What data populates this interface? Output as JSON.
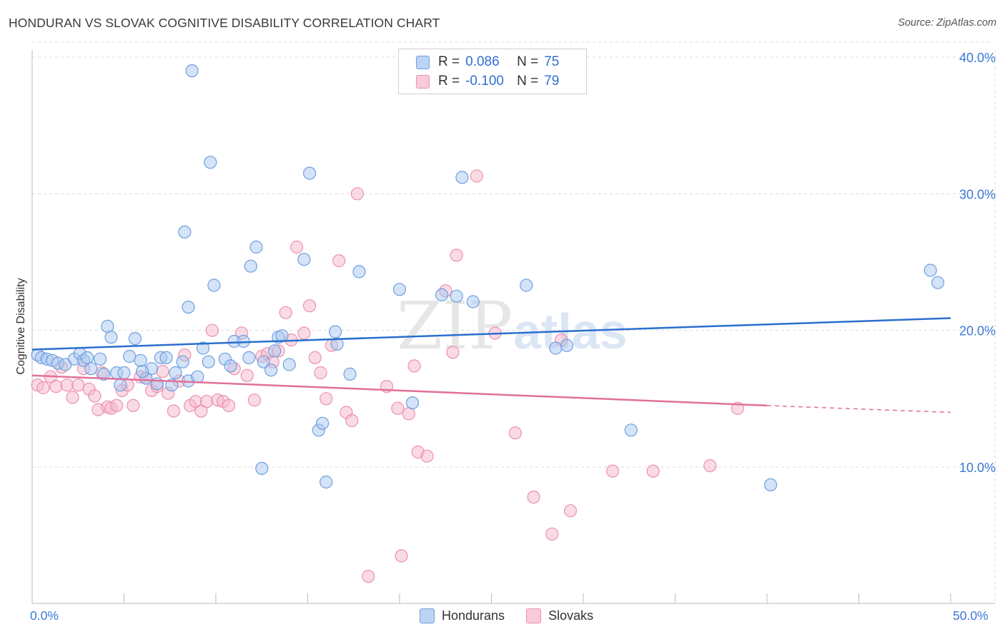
{
  "header": {
    "title": "HONDURAN VS SLOVAK COGNITIVE DISABILITY CORRELATION CHART",
    "source": "Source: ZipAtlas.com"
  },
  "legend_top": {
    "rows": [
      {
        "r_label": "R =",
        "r_value": "0.086",
        "n_label": "N =",
        "n_value": "75"
      },
      {
        "r_label": "R =",
        "r_value": "-0.100",
        "n_label": "N =",
        "n_value": "79"
      }
    ]
  },
  "legend_bottom": [
    "Hondurans",
    "Slovaks"
  ],
  "axes": {
    "ylabel": "Cognitive Disability",
    "x_min_label": "0.0%",
    "x_max_label": "50.0%",
    "y_tick_labels": [
      "10.0%",
      "20.0%",
      "30.0%",
      "40.0%"
    ]
  },
  "watermark": {
    "zip": "ZIP",
    "atlas": "atlas"
  },
  "colors": {
    "blue": "#2a6fce",
    "blue_fill": "#a9c8f0",
    "blue_stroke": "#6f9fe0",
    "pink": "#e0709a",
    "pink_fill": "#f6b8cb",
    "pink_stroke": "#ec90ae",
    "tick_text": "#3a78d8"
  },
  "chart_data": {
    "type": "scatter",
    "xlim": [
      0,
      50
    ],
    "ylim": [
      0,
      41
    ],
    "x_unit": "%",
    "y_unit": "%",
    "y_ticks": [
      10,
      20,
      30,
      40
    ],
    "grid": "horizontal dashed",
    "series": [
      {
        "name": "Hondurans",
        "color": "#2a6fce",
        "points": [
          [
            0.3,
            18.2
          ],
          [
            0.5,
            18.0
          ],
          [
            0.8,
            17.9
          ],
          [
            1.1,
            17.8
          ],
          [
            1.4,
            17.6
          ],
          [
            1.8,
            17.5
          ],
          [
            2.3,
            17.9
          ],
          [
            2.6,
            18.3
          ],
          [
            2.8,
            17.8
          ],
          [
            3.2,
            17.2
          ],
          [
            3.7,
            17.9
          ],
          [
            3.9,
            16.8
          ],
          [
            4.1,
            20.3
          ],
          [
            4.3,
            19.5
          ],
          [
            4.6,
            16.9
          ],
          [
            4.8,
            16.0
          ],
          [
            5.0,
            16.9
          ],
          [
            5.3,
            18.1
          ],
          [
            5.6,
            19.4
          ],
          [
            5.9,
            17.8
          ],
          [
            6.2,
            16.5
          ],
          [
            6.5,
            17.2
          ],
          [
            6.8,
            16.1
          ],
          [
            7.0,
            18.0
          ],
          [
            7.3,
            18.0
          ],
          [
            7.6,
            16.0
          ],
          [
            7.8,
            16.9
          ],
          [
            8.2,
            17.7
          ],
          [
            8.5,
            16.3
          ],
          [
            8.3,
            27.2
          ],
          [
            8.5,
            21.7
          ],
          [
            8.7,
            39.0
          ],
          [
            9.0,
            16.6
          ],
          [
            9.3,
            18.7
          ],
          [
            9.6,
            17.7
          ],
          [
            9.7,
            32.3
          ],
          [
            9.9,
            23.3
          ],
          [
            10.5,
            17.9
          ],
          [
            10.8,
            17.4
          ],
          [
            11.0,
            19.2
          ],
          [
            11.5,
            19.2
          ],
          [
            11.8,
            18.0
          ],
          [
            11.9,
            24.7
          ],
          [
            12.2,
            26.1
          ],
          [
            12.6,
            17.7
          ],
          [
            13.0,
            17.1
          ],
          [
            13.2,
            18.5
          ],
          [
            13.4,
            19.5
          ],
          [
            13.6,
            19.6
          ],
          [
            14.0,
            17.5
          ],
          [
            14.8,
            25.2
          ],
          [
            15.1,
            31.5
          ],
          [
            15.6,
            12.7
          ],
          [
            15.8,
            13.2
          ],
          [
            16.0,
            8.9
          ],
          [
            16.5,
            19.9
          ],
          [
            16.6,
            19.0
          ],
          [
            17.3,
            16.8
          ],
          [
            17.8,
            24.3
          ],
          [
            12.5,
            9.9
          ],
          [
            20.0,
            23.0
          ],
          [
            20.7,
            14.7
          ],
          [
            22.3,
            22.6
          ],
          [
            23.1,
            22.5
          ],
          [
            23.4,
            31.2
          ],
          [
            24.0,
            22.1
          ],
          [
            26.9,
            23.3
          ],
          [
            28.5,
            18.7
          ],
          [
            29.1,
            18.9
          ],
          [
            32.6,
            12.7
          ],
          [
            40.2,
            8.7
          ],
          [
            48.9,
            24.4
          ],
          [
            49.3,
            23.5
          ],
          [
            3.0,
            18.0
          ],
          [
            6.0,
            17.0
          ]
        ]
      },
      {
        "name": "Slovaks",
        "color": "#e0709a",
        "points": [
          [
            0.3,
            16.0
          ],
          [
            0.6,
            15.8
          ],
          [
            1.0,
            16.6
          ],
          [
            1.3,
            15.9
          ],
          [
            1.6,
            17.3
          ],
          [
            1.9,
            16.0
          ],
          [
            2.2,
            15.1
          ],
          [
            2.5,
            16.0
          ],
          [
            2.8,
            17.2
          ],
          [
            3.1,
            15.7
          ],
          [
            3.4,
            15.2
          ],
          [
            3.6,
            14.2
          ],
          [
            3.8,
            16.9
          ],
          [
            4.1,
            14.4
          ],
          [
            4.3,
            14.3
          ],
          [
            4.6,
            14.5
          ],
          [
            4.9,
            15.6
          ],
          [
            5.2,
            16.0
          ],
          [
            5.5,
            14.5
          ],
          [
            5.9,
            16.6
          ],
          [
            6.2,
            16.5
          ],
          [
            6.5,
            15.6
          ],
          [
            6.8,
            15.9
          ],
          [
            7.1,
            17.0
          ],
          [
            7.4,
            15.4
          ],
          [
            7.7,
            14.1
          ],
          [
            8.0,
            16.3
          ],
          [
            8.3,
            18.2
          ],
          [
            8.6,
            14.5
          ],
          [
            8.9,
            14.8
          ],
          [
            9.2,
            14.1
          ],
          [
            9.5,
            14.8
          ],
          [
            9.8,
            20.0
          ],
          [
            10.1,
            14.9
          ],
          [
            10.4,
            14.8
          ],
          [
            10.7,
            14.5
          ],
          [
            11.0,
            17.2
          ],
          [
            11.4,
            19.8
          ],
          [
            11.7,
            16.7
          ],
          [
            12.1,
            14.9
          ],
          [
            12.5,
            18.1
          ],
          [
            12.8,
            18.3
          ],
          [
            13.1,
            17.7
          ],
          [
            13.4,
            18.5
          ],
          [
            13.8,
            21.3
          ],
          [
            14.1,
            19.3
          ],
          [
            14.4,
            26.1
          ],
          [
            14.8,
            19.8
          ],
          [
            15.1,
            21.8
          ],
          [
            15.4,
            18.0
          ],
          [
            15.7,
            16.9
          ],
          [
            16.0,
            15.0
          ],
          [
            16.3,
            18.9
          ],
          [
            16.7,
            25.1
          ],
          [
            17.1,
            14.0
          ],
          [
            17.4,
            13.4
          ],
          [
            17.7,
            30.0
          ],
          [
            18.3,
            2.0
          ],
          [
            19.3,
            15.9
          ],
          [
            19.9,
            14.3
          ],
          [
            20.1,
            3.5
          ],
          [
            20.5,
            13.9
          ],
          [
            20.8,
            17.4
          ],
          [
            21.0,
            11.1
          ],
          [
            21.5,
            10.8
          ],
          [
            22.5,
            22.9
          ],
          [
            22.9,
            18.4
          ],
          [
            23.1,
            25.5
          ],
          [
            24.2,
            31.3
          ],
          [
            25.2,
            19.8
          ],
          [
            26.3,
            12.5
          ],
          [
            27.3,
            7.8
          ],
          [
            28.3,
            5.1
          ],
          [
            28.8,
            19.3
          ],
          [
            29.3,
            6.8
          ],
          [
            31.6,
            9.7
          ],
          [
            33.8,
            9.7
          ],
          [
            36.9,
            10.1
          ],
          [
            38.4,
            14.3
          ]
        ]
      }
    ],
    "trendlines": [
      {
        "series": "Hondurans",
        "from": [
          0,
          18.6
        ],
        "to": [
          50,
          20.9
        ]
      },
      {
        "series": "Slovaks",
        "from": [
          0,
          16.7
        ],
        "to": [
          40,
          14.5
        ],
        "dashed_to": [
          50,
          14.0
        ]
      }
    ]
  }
}
